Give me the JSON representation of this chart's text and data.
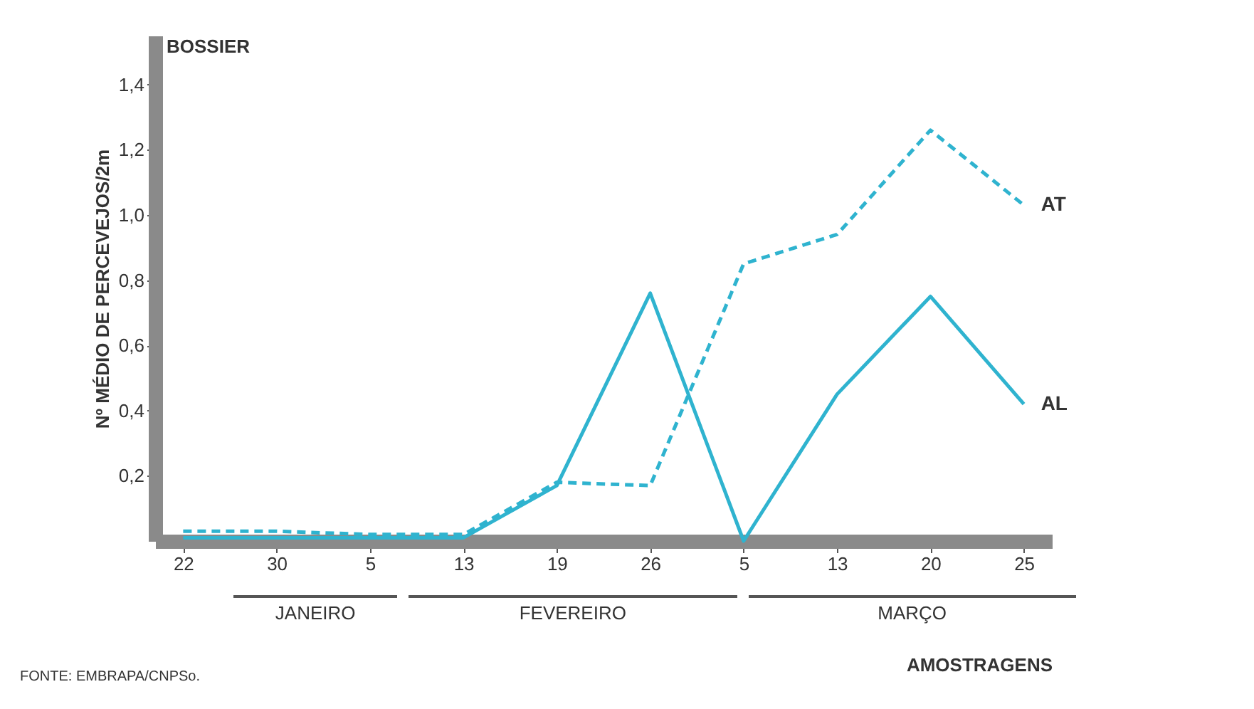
{
  "chart_data": {
    "type": "line",
    "title": "BOSSIER",
    "ylabel": "Nº MÉDIO DE PERCEVEJOS/2m",
    "xlabel": "AMOSTRAGENS",
    "categories": [
      "22",
      "30",
      "5",
      "13",
      "19",
      "26",
      "5",
      "13",
      "20",
      "25"
    ],
    "series": [
      {
        "name": "AT",
        "color": "#2fb3cf",
        "line_style": "dashed",
        "values": [
          0.03,
          0.03,
          0.02,
          0.02,
          0.18,
          0.17,
          0.85,
          0.94,
          1.26,
          1.03
        ]
      },
      {
        "name": "AL",
        "color": "#2fb3cf",
        "line_style": "solid",
        "values": [
          0.01,
          0.01,
          0.01,
          0.01,
          0.17,
          0.76,
          0.0,
          0.45,
          0.75,
          0.42
        ]
      }
    ],
    "ylim": [
      0,
      1.55
    ],
    "yticks": [
      {
        "value": 0.2,
        "label": "0,2"
      },
      {
        "value": 0.4,
        "label": "0,4"
      },
      {
        "value": 0.6,
        "label": "0,6"
      },
      {
        "value": 0.8,
        "label": "0,8"
      },
      {
        "value": 1.0,
        "label": "1,0"
      },
      {
        "value": 1.2,
        "label": "1,2"
      },
      {
        "value": 1.4,
        "label": "1,4"
      }
    ],
    "grid": false,
    "annotations": [
      "JANEIRO",
      "FEVEREIRO",
      "MARÇO",
      "FONTE: EMBRAPA/CNPSo."
    ]
  }
}
